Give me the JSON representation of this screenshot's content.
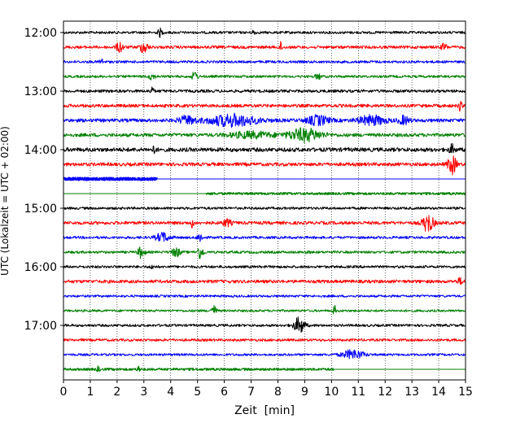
{
  "chart_data": {
    "type": "line",
    "title": "",
    "xlabel": "Zeit  [min]",
    "ylabel": "UTC (Lokalzeit = UTC + 02:00)",
    "xlim": [
      0,
      15
    ],
    "x_ticks": [
      "0",
      "1",
      "2",
      "3",
      "4",
      "5",
      "6",
      "7",
      "8",
      "9",
      "10",
      "11",
      "12",
      "13",
      "14",
      "15"
    ],
    "y_ticks": [
      "12:00",
      "13:00",
      "14:00",
      "15:00",
      "16:00",
      "17:00"
    ],
    "grid": "vertical dotted lines at each minute",
    "trace_minutes": 15,
    "colors": [
      "#000000",
      "#ff0000",
      "#0000ff",
      "#008000"
    ],
    "traces": [
      {
        "start": "12:00",
        "amp": 0.22,
        "events": [
          {
            "t": 3.6,
            "a": 0.7,
            "w": 0.08
          },
          {
            "t": 7.1,
            "a": 0.5,
            "w": 0.06
          }
        ]
      },
      {
        "start": "12:15",
        "amp": 0.25,
        "events": [
          {
            "t": 2.1,
            "a": 0.9,
            "w": 0.12
          },
          {
            "t": 3.0,
            "a": 1.0,
            "w": 0.15
          },
          {
            "t": 8.1,
            "a": 0.8,
            "w": 0.06
          },
          {
            "t": 14.2,
            "a": 0.6,
            "w": 0.1
          }
        ]
      },
      {
        "start": "12:30",
        "amp": 0.22,
        "events": [
          {
            "t": 1.4,
            "a": 0.5,
            "w": 0.08
          }
        ]
      },
      {
        "start": "12:45",
        "amp": 0.22,
        "events": [
          {
            "t": 3.3,
            "a": 0.6,
            "w": 0.1
          },
          {
            "t": 4.9,
            "a": 0.9,
            "w": 0.1
          },
          {
            "t": 9.5,
            "a": 0.5,
            "w": 0.1
          }
        ]
      },
      {
        "start": "13:00",
        "amp": 0.25,
        "events": [
          {
            "t": 3.3,
            "a": 1.1,
            "w": 0.05
          }
        ]
      },
      {
        "start": "13:15",
        "amp": 0.28,
        "events": [
          {
            "t": 14.8,
            "a": 0.8,
            "w": 0.06
          }
        ]
      },
      {
        "start": "13:30",
        "amp": 0.3,
        "events": [
          {
            "t": 4.6,
            "a": 0.7,
            "w": 0.3
          },
          {
            "t": 6.3,
            "a": 1.0,
            "w": 0.9
          },
          {
            "t": 9.5,
            "a": 0.8,
            "w": 0.4
          },
          {
            "t": 11.5,
            "a": 0.8,
            "w": 0.5
          },
          {
            "t": 12.7,
            "a": 0.7,
            "w": 0.2
          }
        ]
      },
      {
        "start": "13:45",
        "amp": 0.3,
        "events": [
          {
            "t": 9.0,
            "a": 1.1,
            "w": 0.6
          },
          {
            "t": 7.0,
            "a": 0.5,
            "w": 0.8
          }
        ]
      },
      {
        "start": "14:00",
        "amp": 0.35,
        "events": [
          {
            "t": 3.4,
            "a": 1.0,
            "w": 0.05
          },
          {
            "t": 14.5,
            "a": 0.8,
            "w": 0.1
          }
        ]
      },
      {
        "start": "14:15",
        "amp": 0.3,
        "events": [
          {
            "t": 14.5,
            "a": 1.6,
            "w": 0.15
          }
        ]
      },
      {
        "start": "14:30",
        "amp": 0.3,
        "end": 3.5,
        "events": []
      },
      {
        "start": "14:45",
        "amp": 0.22,
        "begin": 5.3,
        "events": []
      },
      {
        "start": "15:00",
        "amp": 0.22,
        "events": []
      },
      {
        "start": "15:15",
        "amp": 0.28,
        "events": [
          {
            "t": 4.8,
            "a": 0.7,
            "w": 0.06
          },
          {
            "t": 6.1,
            "a": 0.6,
            "w": 0.15
          },
          {
            "t": 13.6,
            "a": 1.6,
            "w": 0.2
          }
        ]
      },
      {
        "start": "15:30",
        "amp": 0.22,
        "events": [
          {
            "t": 3.7,
            "a": 0.8,
            "w": 0.25
          },
          {
            "t": 5.1,
            "a": 0.8,
            "w": 0.1
          }
        ]
      },
      {
        "start": "15:45",
        "amp": 0.22,
        "events": [
          {
            "t": 2.9,
            "a": 1.0,
            "w": 0.12
          },
          {
            "t": 4.2,
            "a": 0.8,
            "w": 0.15
          },
          {
            "t": 5.1,
            "a": 1.1,
            "w": 0.12
          },
          {
            "t": 9.1,
            "a": 0.5,
            "w": 0.05
          }
        ]
      },
      {
        "start": "16:00",
        "amp": 0.22,
        "events": [
          {
            "t": 3.3,
            "a": 0.5,
            "w": 0.05
          }
        ]
      },
      {
        "start": "16:15",
        "amp": 0.28,
        "events": [
          {
            "t": 14.8,
            "a": 0.5,
            "w": 0.1
          }
        ]
      },
      {
        "start": "16:30",
        "amp": 0.2,
        "events": []
      },
      {
        "start": "16:45",
        "amp": 0.2,
        "events": [
          {
            "t": 5.6,
            "a": 0.9,
            "w": 0.1
          },
          {
            "t": 10.1,
            "a": 1.2,
            "w": 0.05
          }
        ]
      },
      {
        "start": "17:00",
        "amp": 0.22,
        "events": [
          {
            "t": 8.8,
            "a": 1.4,
            "w": 0.2
          }
        ]
      },
      {
        "start": "17:15",
        "amp": 0.22,
        "events": []
      },
      {
        "start": "17:30",
        "amp": 0.2,
        "events": [
          {
            "t": 10.8,
            "a": 0.8,
            "w": 0.4
          }
        ]
      },
      {
        "start": "17:45",
        "amp": 0.22,
        "end": 10.1,
        "events": [
          {
            "t": 2.8,
            "a": 0.6,
            "w": 0.05
          },
          {
            "t": 1.3,
            "a": 0.5,
            "w": 0.05
          }
        ]
      }
    ]
  }
}
